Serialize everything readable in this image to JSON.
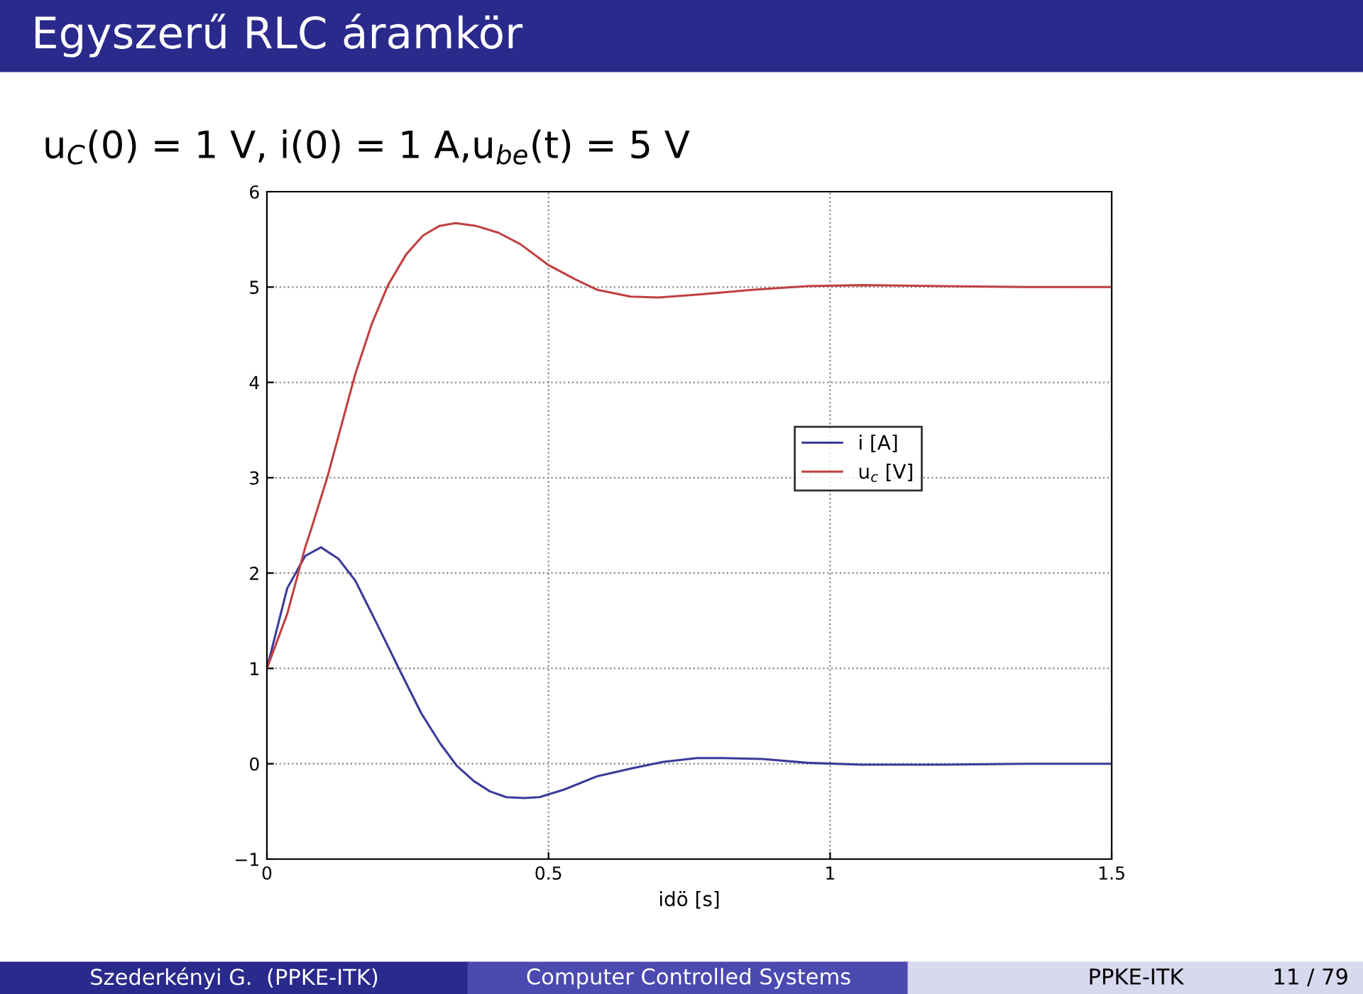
{
  "chart_data": {
    "type": "line",
    "title": "Egyszerű RLC áramkör",
    "subtitle": "u$_{C}$(0) = 1 V, i(0) = 1 A,u$_{be}$(t) = 5 V",
    "xlabel": "idö [s]",
    "series": [
      {
        "name": "i [A]",
        "color": "#3a3a9a",
        "x": [
          0,
          0.036,
          0.068,
          0.096,
          0.127,
          0.157,
          0.196,
          0.235,
          0.274,
          0.308,
          0.337,
          0.367,
          0.396,
          0.425,
          0.457,
          0.484,
          0.528,
          0.587,
          0.646,
          0.704,
          0.763,
          0.812,
          0.88,
          0.96,
          1.056,
          1.2,
          1.35,
          1.5
        ],
        "values": [
          1,
          1.84,
          2.18,
          2.27,
          2.15,
          1.92,
          1.46,
          0.99,
          0.53,
          0.21,
          -0.02,
          -0.18,
          -0.29,
          -0.35,
          -0.36,
          -0.35,
          -0.27,
          -0.13,
          -0.05,
          0.02,
          0.06,
          0.06,
          0.05,
          0.01,
          -0.01,
          -0.01,
          0,
          0
        ]
      },
      {
        "name": "u$_{c}$ [V]",
        "color": "#c04040",
        "x": [
          0,
          0.036,
          0.068,
          0.078,
          0.108,
          0.157,
          0.186,
          0.215,
          0.247,
          0.277,
          0.306,
          0.335,
          0.372,
          0.411,
          0.45,
          0.5,
          0.548,
          0.587,
          0.646,
          0.695,
          0.763,
          0.861,
          0.959,
          1.056,
          1.2,
          1.35,
          1.5
        ],
        "values": [
          1,
          1.57,
          2.27,
          2.45,
          3.02,
          4.09,
          4.61,
          5.02,
          5.34,
          5.54,
          5.64,
          5.67,
          5.64,
          5.57,
          5.45,
          5.23,
          5.08,
          4.97,
          4.9,
          4.89,
          4.92,
          4.97,
          5.01,
          5.02,
          5.01,
          5,
          5
        ]
      }
    ],
    "xlim": [
      0,
      1.5
    ],
    "xticks": [
      0,
      0.5,
      1,
      1.5
    ],
    "ylim": [
      -1,
      6
    ],
    "yticks": [
      {
        "value": -1,
        "label": "−1"
      },
      0,
      1,
      2,
      3,
      4,
      5,
      6
    ],
    "grid": true,
    "legend": "center right",
    "line_style": "solid",
    "marker": "none",
    "annotations": [
      "Szederkényi G.  (PPKE-ITK)",
      "Computer Controlled Systems",
      "PPKE-ITK",
      "11 / 79"
    ]
  }
}
